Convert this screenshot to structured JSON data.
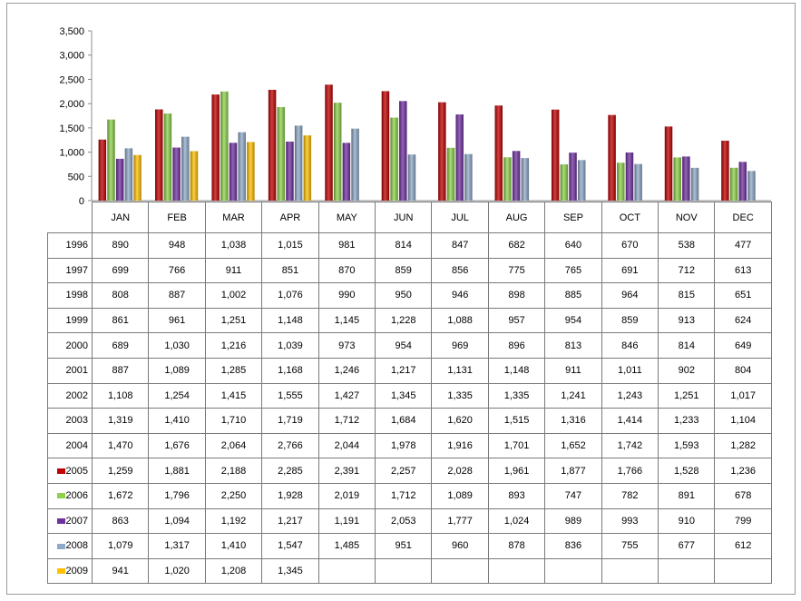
{
  "chart_data": {
    "type": "bar",
    "title": "",
    "xlabel": "",
    "ylabel": "",
    "ylim": [
      0,
      3500
    ],
    "yticks": [
      "0",
      "500",
      "1,000",
      "1,500",
      "2,000",
      "2,500",
      "3,000",
      "3,500"
    ],
    "grid": false,
    "legend": "in table rows (left of year labels)",
    "categories": [
      "JAN",
      "FEB",
      "MAR",
      "APR",
      "MAY",
      "JUN",
      "JUL",
      "AUG",
      "SEP",
      "OCT",
      "NOV",
      "DEC"
    ],
    "series": [
      {
        "name": "1996",
        "charted": false,
        "values": [
          "890",
          "948",
          "1,038",
          "1,015",
          "981",
          "814",
          "847",
          "682",
          "640",
          "670",
          "538",
          "477"
        ]
      },
      {
        "name": "1997",
        "charted": false,
        "values": [
          "699",
          "766",
          "911",
          "851",
          "870",
          "859",
          "856",
          "775",
          "765",
          "691",
          "712",
          "613"
        ]
      },
      {
        "name": "1998",
        "charted": false,
        "values": [
          "808",
          "887",
          "1,002",
          "1,076",
          "990",
          "950",
          "946",
          "898",
          "885",
          "964",
          "815",
          "651"
        ]
      },
      {
        "name": "1999",
        "charted": false,
        "values": [
          "861",
          "961",
          "1,251",
          "1,148",
          "1,145",
          "1,228",
          "1,088",
          "957",
          "954",
          "859",
          "913",
          "624"
        ]
      },
      {
        "name": "2000",
        "charted": false,
        "values": [
          "689",
          "1,030",
          "1,216",
          "1,039",
          "973",
          "954",
          "969",
          "896",
          "813",
          "846",
          "814",
          "649"
        ]
      },
      {
        "name": "2001",
        "charted": false,
        "values": [
          "887",
          "1,089",
          "1,285",
          "1,168",
          "1,246",
          "1,217",
          "1,131",
          "1,148",
          "911",
          "1,011",
          "902",
          "804"
        ]
      },
      {
        "name": "2002",
        "charted": false,
        "values": [
          "1,108",
          "1,254",
          "1,415",
          "1,555",
          "1,427",
          "1,345",
          "1,335",
          "1,335",
          "1,241",
          "1,243",
          "1,251",
          "1,017"
        ]
      },
      {
        "name": "2003",
        "charted": false,
        "values": [
          "1,319",
          "1,410",
          "1,710",
          "1,719",
          "1,712",
          "1,684",
          "1,620",
          "1,515",
          "1,316",
          "1,414",
          "1,233",
          "1,104"
        ]
      },
      {
        "name": "2004",
        "charted": false,
        "values": [
          "1,470",
          "1,676",
          "2,064",
          "2,766",
          "2,044",
          "1,978",
          "1,916",
          "1,701",
          "1,652",
          "1,742",
          "1,593",
          "1,282"
        ]
      },
      {
        "name": "2005",
        "charted": true,
        "color": "#c00000",
        "values": [
          "1,259",
          "1,881",
          "2,188",
          "2,285",
          "2,391",
          "2,257",
          "2,028",
          "1,961",
          "1,877",
          "1,766",
          "1,528",
          "1,236"
        ]
      },
      {
        "name": "2006",
        "charted": true,
        "color": "#8ed14b",
        "values": [
          "1,672",
          "1,796",
          "2,250",
          "1,928",
          "2,019",
          "1,712",
          "1,089",
          "893",
          "747",
          "782",
          "891",
          "678"
        ]
      },
      {
        "name": "2007",
        "charted": true,
        "color": "#7030a0",
        "values": [
          "863",
          "1,094",
          "1,192",
          "1,217",
          "1,191",
          "2,053",
          "1,777",
          "1,024",
          "989",
          "993",
          "910",
          "799"
        ]
      },
      {
        "name": "2008",
        "charted": true,
        "color": "#8fa9c8",
        "values": [
          "1,079",
          "1,317",
          "1,410",
          "1,547",
          "1,485",
          "951",
          "960",
          "878",
          "836",
          "755",
          "677",
          "612"
        ]
      },
      {
        "name": "2009",
        "charted": true,
        "color": "#ffc000",
        "values": [
          "941",
          "1,020",
          "1,208",
          "1,345",
          "",
          "",
          "",
          "",
          "",
          "",
          "",
          ""
        ]
      }
    ]
  }
}
